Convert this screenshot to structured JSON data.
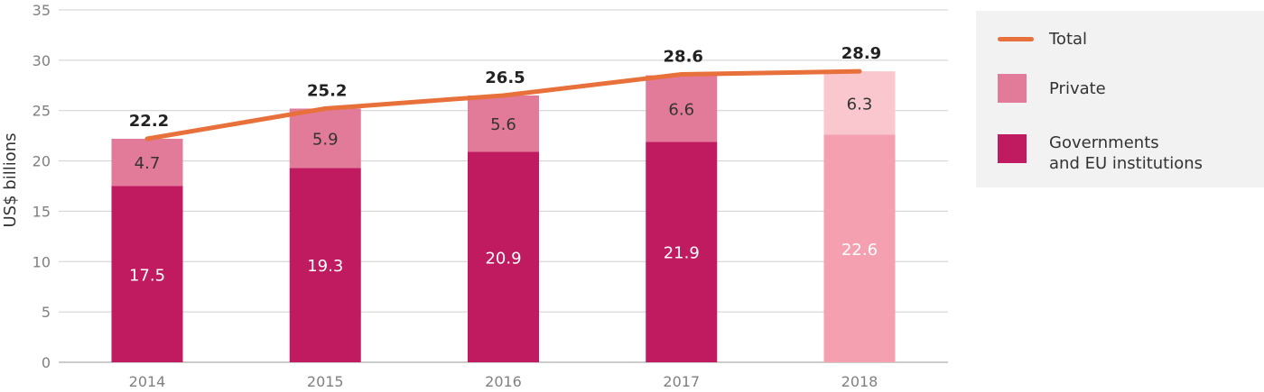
{
  "chart_data": {
    "type": "bar",
    "stacked": true,
    "categories": [
      "2014",
      "2015",
      "2016",
      "2017",
      "2018"
    ],
    "series": [
      {
        "name": "Governments\nand EU institutions",
        "values": [
          17.5,
          19.3,
          20.9,
          21.9,
          22.6
        ],
        "color": "#c01a60",
        "colors_by_category": [
          "#c01a60",
          "#c01a60",
          "#c01a60",
          "#c01a60",
          "#f4a0b0"
        ],
        "label_colors": [
          "#ffffff",
          "#ffffff",
          "#ffffff",
          "#ffffff",
          "#ffffff"
        ]
      },
      {
        "name": "Private",
        "values": [
          4.7,
          5.9,
          5.6,
          6.6,
          6.3
        ],
        "color": "#e27b9a",
        "colors_by_category": [
          "#e27b9a",
          "#e27b9a",
          "#e27b9a",
          "#e27b9a",
          "#f9c7cd"
        ],
        "label_colors": [
          "#333333",
          "#333333",
          "#333333",
          "#333333",
          "#333333"
        ]
      }
    ],
    "total": {
      "name": "Total",
      "values": [
        22.2,
        25.2,
        26.5,
        28.6,
        28.9
      ],
      "labels": [
        "22.2",
        "25.2",
        "26.5",
        "28.6",
        "28.9"
      ],
      "color": "#e8703a"
    },
    "ylabel": "US$ billions",
    "xlabel": "",
    "ylim": [
      0,
      35
    ],
    "yticks": [
      0,
      5,
      10,
      15,
      20,
      25,
      30,
      35
    ],
    "grid": true,
    "legend_position": "right"
  },
  "legend": {
    "items": [
      {
        "label": "Total",
        "kind": "line",
        "color": "#e8703a"
      },
      {
        "label": "Private",
        "kind": "box",
        "color": "#e27b9a"
      },
      {
        "label": "Governments\nand EU institutions",
        "kind": "box",
        "color": "#c01a60"
      }
    ]
  }
}
